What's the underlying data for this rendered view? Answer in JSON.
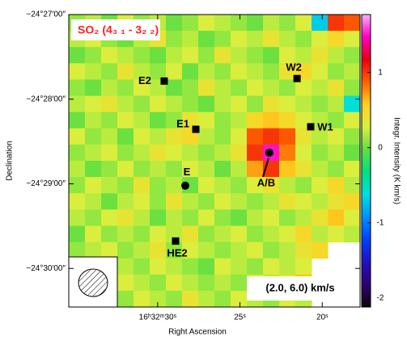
{
  "chart_data": {
    "type": "heatmap",
    "title": "SO₂ (4₃ ₁ - 3₂ ₂)",
    "annotation": "(2.0, 6.0) km/s",
    "x_label": "Right Ascension",
    "y_label": "Declination",
    "colorbar_label": "Integr. Intensity (K km/s)",
    "xlim": [
      35.4,
      17.7
    ],
    "ylim": [
      -24.5076,
      -24.45
    ],
    "clim": [
      -2.12,
      1.77
    ],
    "xticks": [
      {
        "value": 30,
        "label": "16ʰ32ᵐ30ˢ"
      },
      {
        "value": 25,
        "label": "25ˢ"
      },
      {
        "value": 20,
        "label": "20ˢ"
      }
    ],
    "yticks": [
      {
        "value": -24.45,
        "label": "−24°27′00″"
      },
      {
        "value": -24.466667,
        "label": "−24°28′00″"
      },
      {
        "value": -24.483333,
        "label": "−24°29′00″"
      },
      {
        "value": -24.5,
        "label": "−24°30′00″"
      }
    ],
    "cticks": [
      -2,
      -1,
      0,
      1
    ],
    "colormap": [
      "#100010",
      "#300070",
      "#2010c0",
      "#0040ff",
      "#0090ff",
      "#00e0e0",
      "#00e080",
      "#60e040",
      "#d8f040",
      "#ffd020",
      "#ff6000",
      "#e80010",
      "#ff00c0",
      "#ffb0ff"
    ],
    "values": [
      [
        0.1,
        0.2,
        0.0,
        0.3,
        0.1,
        0.2,
        0.0,
        0.1,
        0.3,
        0.2,
        0.1,
        0.0,
        0.2,
        0.1,
        0.3,
        -0.7,
        1.0,
        0.9
      ],
      [
        0.2,
        0.3,
        0.1,
        0.0,
        0.2,
        0.4,
        0.1,
        0.2,
        0.0,
        0.1,
        0.3,
        0.2,
        0.4,
        0.2,
        0.1,
        0.3,
        0.5,
        0.3
      ],
      [
        0.0,
        0.1,
        0.3,
        0.2,
        0.1,
        0.0,
        0.2,
        0.3,
        0.1,
        0.4,
        0.2,
        0.1,
        0.0,
        0.3,
        0.2,
        0.4,
        0.2,
        0.1
      ],
      [
        0.3,
        0.2,
        0.1,
        0.4,
        0.2,
        0.1,
        0.3,
        0.0,
        0.2,
        0.1,
        0.3,
        0.2,
        0.1,
        0.4,
        0.5,
        0.3,
        0.1,
        0.2
      ],
      [
        0.1,
        0.0,
        0.2,
        0.1,
        0.3,
        0.2,
        0.0,
        0.1,
        0.4,
        0.2,
        0.1,
        0.3,
        0.2,
        0.1,
        0.3,
        0.2,
        0.4,
        0.1
      ],
      [
        0.2,
        0.3,
        0.4,
        0.2,
        0.1,
        0.3,
        0.2,
        0.1,
        0.0,
        0.2,
        0.3,
        0.1,
        0.4,
        0.3,
        0.2,
        0.1,
        0.2,
        -0.6
      ],
      [
        0.0,
        0.2,
        0.1,
        0.3,
        0.2,
        0.0,
        0.1,
        0.4,
        0.3,
        0.1,
        0.2,
        0.5,
        0.6,
        0.5,
        0.3,
        0.2,
        0.1,
        0.3
      ],
      [
        0.3,
        0.1,
        0.2,
        0.0,
        0.3,
        0.2,
        0.4,
        0.5,
        0.2,
        0.1,
        0.3,
        0.9,
        1.0,
        0.9,
        0.4,
        0.2,
        0.3,
        0.1
      ],
      [
        0.1,
        0.2,
        0.3,
        0.1,
        0.2,
        0.4,
        0.3,
        0.2,
        0.1,
        0.2,
        0.4,
        1.0,
        1.5,
        0.8,
        0.3,
        0.1,
        0.2,
        0.0
      ],
      [
        0.2,
        0.0,
        0.1,
        0.3,
        0.1,
        0.2,
        0.1,
        0.3,
        0.2,
        0.0,
        0.2,
        0.7,
        1.0,
        0.6,
        0.4,
        0.2,
        0.1,
        0.3
      ],
      [
        0.1,
        0.3,
        0.2,
        0.1,
        0.4,
        0.1,
        0.2,
        0.0,
        0.3,
        0.2,
        0.1,
        0.3,
        0.4,
        0.2,
        0.1,
        0.3,
        0.5,
        0.2
      ],
      [
        0.3,
        0.2,
        0.0,
        0.2,
        0.3,
        0.1,
        0.4,
        0.2,
        0.1,
        0.3,
        0.2,
        0.1,
        0.2,
        0.4,
        0.3,
        0.2,
        0.4,
        0.5
      ],
      [
        0.2,
        0.1,
        0.3,
        0.4,
        0.2,
        0.0,
        0.2,
        0.1,
        0.3,
        0.1,
        0.0,
        0.2,
        0.3,
        0.1,
        0.2,
        0.4,
        0.6,
        0.3
      ],
      [
        0.0,
        0.3,
        0.1,
        0.2,
        0.1,
        0.3,
        0.2,
        0.4,
        0.1,
        0.2,
        0.3,
        0.1,
        0.2,
        0.3,
        0.5,
        0.2,
        0.3,
        0.2
      ],
      [
        0.1,
        0.2,
        0.3,
        0.1,
        0.2,
        0.4,
        0.1,
        0.3,
        0.2,
        0.1,
        0.2,
        0.3,
        0.1,
        0.2,
        0.4,
        0.5,
        null,
        null
      ],
      [
        null,
        null,
        null,
        0.2,
        0.1,
        0.3,
        0.2,
        0.1,
        0.0,
        0.3,
        0.2,
        0.1,
        0.3,
        0.2,
        0.3,
        null,
        null,
        null
      ],
      [
        null,
        null,
        null,
        0.3,
        0.2,
        0.1,
        0.3,
        0.2,
        0.1,
        0.2,
        0.1,
        0.3,
        0.2,
        0.4,
        0.6,
        null,
        null,
        null
      ],
      [
        null,
        null,
        null,
        0.1,
        0.3,
        0.2,
        0.1,
        0.4,
        0.2,
        0.1,
        0.3,
        0.2,
        0.1,
        0.3,
        0.2,
        null,
        null,
        null
      ]
    ],
    "sources": [
      {
        "name": "E2",
        "marker": "square",
        "ra": 29.6,
        "dec": -24.4631
      },
      {
        "name": "E1",
        "marker": "square",
        "ra": 27.68,
        "dec": -24.4726
      },
      {
        "name": "W2",
        "marker": "square",
        "ra": 21.53,
        "dec": -24.4626
      },
      {
        "name": "W1",
        "marker": "square",
        "ra": 20.7,
        "dec": -24.4721
      },
      {
        "name": "E",
        "marker": "circle",
        "ra": 28.32,
        "dec": -24.4837
      },
      {
        "name": "A/B",
        "marker": "circle",
        "ra": 23.21,
        "dec": -24.4772
      },
      {
        "name": "HE2",
        "marker": "square",
        "ra": 28.91,
        "dec": -24.4946
      }
    ]
  }
}
